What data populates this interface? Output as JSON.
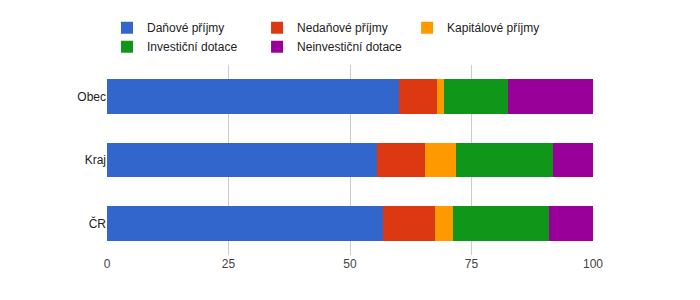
{
  "chart_data": {
    "type": "bar",
    "orientation": "horizontal",
    "stacked": true,
    "categories": [
      "Obec",
      "Kraj",
      "ČR"
    ],
    "series": [
      {
        "name": "Daňové příjmy",
        "color": "#3366cc",
        "values": [
          60.1,
          55.6,
          56.8
        ]
      },
      {
        "name": "Nedaňové příjmy",
        "color": "#dc3912",
        "values": [
          7.8,
          9.8,
          10.7
        ]
      },
      {
        "name": "Kapitálové příjmy",
        "color": "#ff9900",
        "values": [
          1.4,
          6.4,
          3.7
        ]
      },
      {
        "name": "Investiční dotace",
        "color": "#109618",
        "values": [
          13.2,
          20.0,
          19.7
        ]
      },
      {
        "name": "Neinvestiční dotace",
        "color": "#990099",
        "values": [
          17.5,
          8.2,
          9.1
        ]
      }
    ],
    "xlim": [
      0,
      100
    ],
    "xticks": [
      0,
      25,
      50,
      75,
      100
    ],
    "grid": true,
    "legend": "top"
  }
}
